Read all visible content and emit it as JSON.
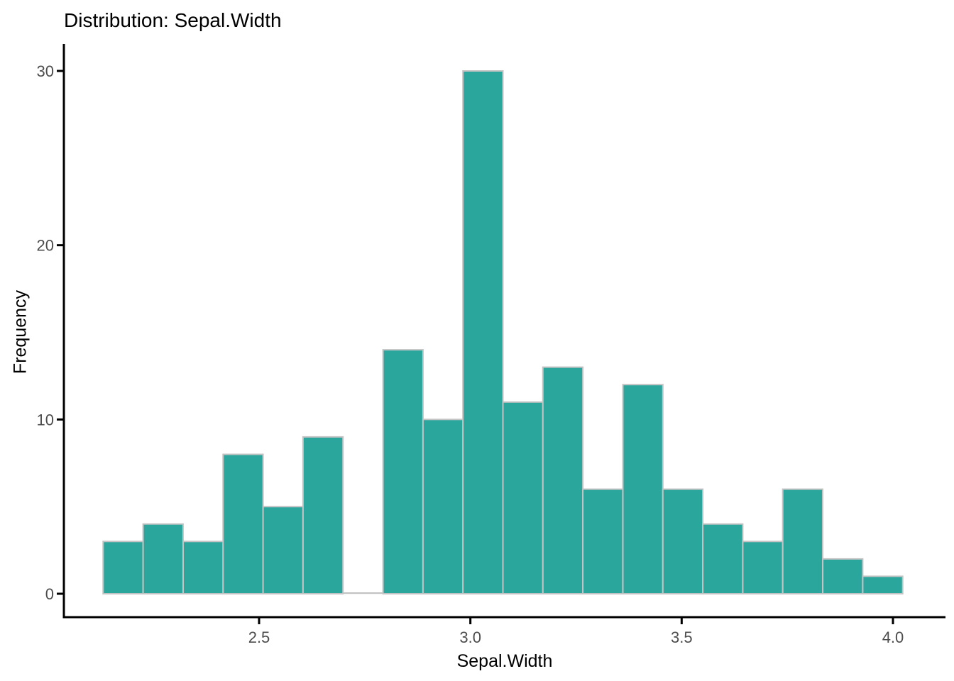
{
  "chart_data": {
    "type": "bar",
    "subtype": "histogram",
    "title": "Distribution: Sepal.Width",
    "xlabel": "Sepal.Width",
    "ylabel": "Frequency",
    "bin_start": 2.131,
    "bin_width": 0.0946,
    "counts": [
      3,
      4,
      3,
      8,
      5,
      9,
      0,
      14,
      10,
      30,
      11,
      13,
      6,
      12,
      6,
      4,
      3,
      6,
      2,
      1
    ],
    "x_ticks": [
      2.5,
      3.0,
      3.5,
      4.0
    ],
    "x_tick_labels": [
      "2.5",
      "3.0",
      "3.5",
      "4.0"
    ],
    "y_ticks": [
      0,
      10,
      20,
      30
    ],
    "y_tick_labels": [
      "0",
      "10",
      "20",
      "30"
    ],
    "xlim": [
      2.04,
      4.14
    ],
    "ylim": [
      0,
      30
    ],
    "grid": false,
    "legend": "none",
    "colors": {
      "bar_fill": "#2aa69c",
      "bar_border": "#c3c3c3",
      "axis_line": "#000000",
      "tick_label": "#4d4d4d",
      "title_text": "#000000",
      "background": "#ffffff"
    }
  }
}
